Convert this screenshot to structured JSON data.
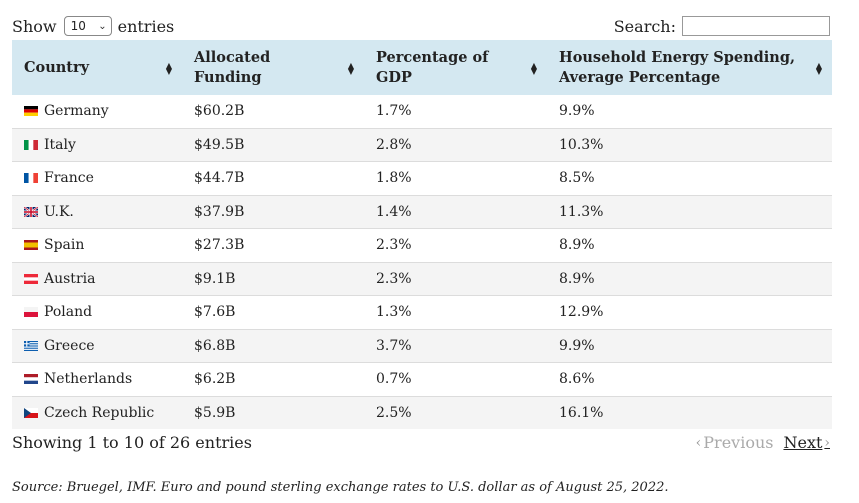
{
  "length_control": {
    "label_before": "Show",
    "selected": "10",
    "label_after": "entries"
  },
  "search": {
    "label": "Search:",
    "value": ""
  },
  "columns": [
    "Country",
    "Allocated Funding",
    "Percentage of GDP",
    "Household Energy Spending, Average Percentage"
  ],
  "rows": [
    {
      "country": "Germany",
      "flag": "germany-flag-icon",
      "funding": "$60.2B",
      "gdp": "1.7%",
      "energy": "9.9%"
    },
    {
      "country": "Italy",
      "flag": "italy-flag-icon",
      "funding": "$49.5B",
      "gdp": "2.8%",
      "energy": "10.3%"
    },
    {
      "country": "France",
      "flag": "france-flag-icon",
      "funding": "$44.7B",
      "gdp": "1.8%",
      "energy": "8.5%"
    },
    {
      "country": "U.K.",
      "flag": "uk-flag-icon",
      "funding": "$37.9B",
      "gdp": "1.4%",
      "energy": "11.3%"
    },
    {
      "country": "Spain",
      "flag": "spain-flag-icon",
      "funding": "$27.3B",
      "gdp": "2.3%",
      "energy": "8.9%"
    },
    {
      "country": "Austria",
      "flag": "austria-flag-icon",
      "funding": "$9.1B",
      "gdp": "2.3%",
      "energy": "8.9%"
    },
    {
      "country": "Poland",
      "flag": "poland-flag-icon",
      "funding": "$7.6B",
      "gdp": "1.3%",
      "energy": "12.9%"
    },
    {
      "country": "Greece",
      "flag": "greece-flag-icon",
      "funding": "$6.8B",
      "gdp": "3.7%",
      "energy": "9.9%"
    },
    {
      "country": "Netherlands",
      "flag": "netherlands-flag-icon",
      "funding": "$6.2B",
      "gdp": "0.7%",
      "energy": "8.6%"
    },
    {
      "country": "Czech Republic",
      "flag": "czech-flag-icon",
      "funding": "$5.9B",
      "gdp": "2.5%",
      "energy": "16.1%"
    }
  ],
  "info": "Showing 1 to 10 of 26 entries",
  "pagination": {
    "previous": "Previous",
    "next": "Next"
  },
  "source": "Source: Bruegel, IMF. Euro and pound sterling exchange rates to U.S. dollar as of August 25, 2022."
}
